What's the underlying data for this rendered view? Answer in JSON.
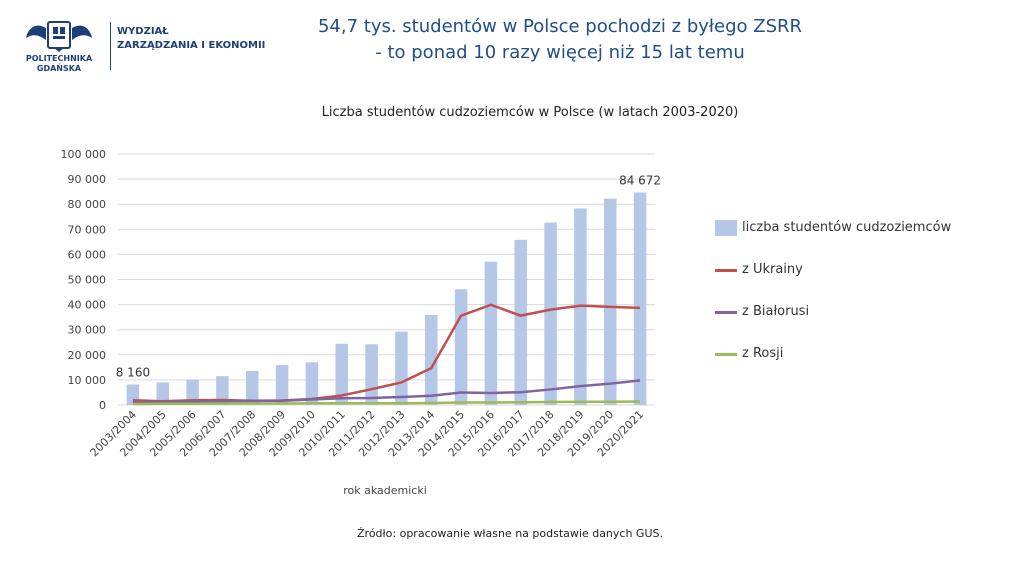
{
  "header": {
    "logo_line1": "POLITECHNIKA",
    "logo_line2": "GDAŃSKA",
    "dept_line1": "WYDZIAŁ",
    "dept_line2": "ZARZĄDZANIA I EKONOMII",
    "headline_line1": "54,7 tys. studentów w Polsce pochodzi z byłego ZSRR",
    "headline_line2": "- to ponad 10 razy więcej niż 15 lat temu"
  },
  "chart_data": {
    "type": "bar",
    "title": "Liczba studentów cudzoziemców w Polsce (w latach 2003-2020)",
    "xlabel": "rok akademicki",
    "ylabel": "",
    "ylim": [
      0,
      100000
    ],
    "yticks": [
      "0",
      "10 000",
      "20 000",
      "30 000",
      "40 000",
      "50 000",
      "60 000",
      "70 000",
      "80 000",
      "90 000",
      "100 000"
    ],
    "grid": true,
    "legend_position": "right",
    "categories": [
      "2003/2004",
      "2004/2005",
      "2005/2006",
      "2006/2007",
      "2007/2008",
      "2008/2009",
      "2009/2010",
      "2010/2011",
      "2011/2012",
      "2012/2013",
      "2013/2014",
      "2014/2015",
      "2015/2016",
      "2016/2017",
      "2017/2018",
      "2018/2019",
      "2019/2020",
      "2020/2021"
    ],
    "series": [
      {
        "name": "liczba studentów cudzoziemców",
        "kind": "bar",
        "color": "#b4c7e7",
        "values": [
          8160,
          9000,
          10100,
          11500,
          13600,
          15900,
          17000,
          24400,
          24200,
          29200,
          35900,
          46100,
          57100,
          65800,
          72700,
          78300,
          82200,
          84672
        ]
      },
      {
        "name": "z Ukrainy",
        "kind": "line",
        "color": "#c0504d",
        "values": [
          1900,
          1500,
          1900,
          2000,
          1700,
          1800,
          2400,
          3800,
          6300,
          9000,
          14700,
          35600,
          39900,
          35600,
          38000,
          39600,
          39100,
          38700
        ]
      },
      {
        "name": "z Białorusi",
        "kind": "line",
        "color": "#8064a2",
        "values": [
          1000,
          1200,
          1400,
          1500,
          1600,
          1700,
          2200,
          2700,
          2800,
          3200,
          3700,
          5000,
          4800,
          5100,
          6200,
          7500,
          8500,
          9800
        ]
      },
      {
        "name": "z Rosji",
        "kind": "line",
        "color": "#9bbb59",
        "values": [
          400,
          500,
          500,
          600,
          600,
          600,
          700,
          700,
          700,
          700,
          800,
          1000,
          1000,
          1100,
          1200,
          1300,
          1300,
          1400
        ]
      }
    ],
    "data_labels": [
      {
        "index": 0,
        "text": "8 160"
      },
      {
        "index": 17,
        "text": "84 672"
      }
    ]
  },
  "footer": {
    "source": "Źródło: opracowanie własne na podstawie danych GUS."
  }
}
